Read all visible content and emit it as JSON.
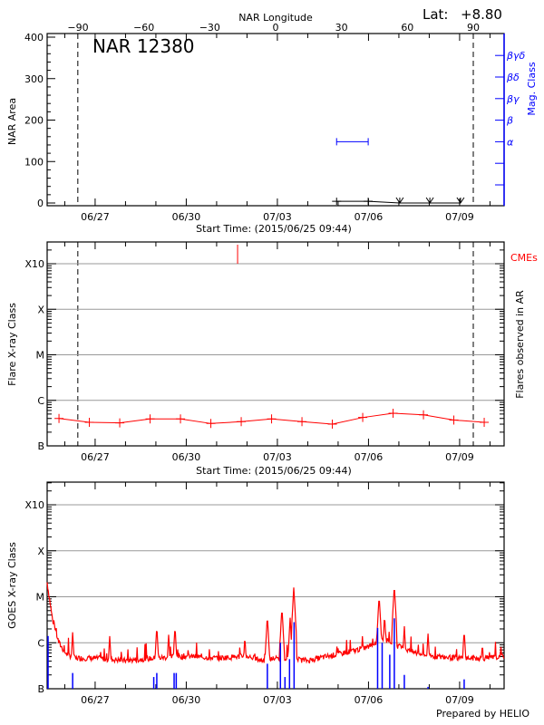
{
  "header": {
    "lat_label": "Lat:",
    "lat_value": "+8.80",
    "footer": "Prepared by HELIO"
  },
  "chart_data": [
    {
      "type": "line",
      "panel": "nar-area",
      "title": "NAR 12380",
      "xlabel": "Start Time: (2015/06/25 09:44)",
      "ylabel": "NAR Area",
      "y2label": "Mag. Class",
      "top_axis_label": "NAR Longitude",
      "top_ticks": [
        "-90",
        "-60",
        "-30",
        "0",
        "30",
        "60",
        "90"
      ],
      "x_ticks": [
        "06/27",
        "06/30",
        "07/03",
        "07/06",
        "07/09"
      ],
      "y_ticks": [
        "0",
        "100",
        "200",
        "300",
        "400"
      ],
      "ylim": [
        0,
        400
      ],
      "mag_class_ticks": [
        "",
        "",
        "α",
        "β",
        "βγ",
        "βδ",
        "βγδ"
      ],
      "limb_lines": [
        "06/26 10:19",
        "07/09 10:48"
      ],
      "area_series": [
        {
          "t": "07/04 22:48",
          "v": 4
        },
        {
          "t": "07/05 23:46",
          "v": 4
        },
        {
          "t": "07/07 00:43",
          "v": 0
        },
        {
          "t": "07/08 00:29",
          "v": 0
        },
        {
          "t": "07/09 00:43",
          "v": 0
        }
      ],
      "mag_class_series": [
        {
          "t_start": "07/04 22:48",
          "t_end": "07/05 23:46",
          "class": "α"
        }
      ],
      "colors": {
        "area": "#000000",
        "mag_class": "#0000ff"
      }
    },
    {
      "type": "line",
      "panel": "flares",
      "xlabel": "Start Time: (2015/06/25 09:44)",
      "ylabel": "Flare X-ray Class",
      "y2label": "Flares observed in AR",
      "cme_label": "CMEs",
      "x_ticks": [
        "06/27",
        "06/30",
        "07/03",
        "07/06",
        "07/09"
      ],
      "y_ticks": [
        "B",
        "C",
        "M",
        "X",
        "X10"
      ],
      "y_scale": "log",
      "grid": true,
      "limb_lines": [
        "06/26 10:19",
        "07/09 10:48"
      ],
      "cmes": [
        "07/01 16:34"
      ],
      "flare_series": [
        {
          "t": "06/25 19:26",
          "v": 4e-07
        },
        {
          "t": "06/26 19:26",
          "v": 3.3e-07
        },
        {
          "t": "06/27 19:26",
          "v": 3.2e-07
        },
        {
          "t": "06/28 19:26",
          "v": 3.9e-07
        },
        {
          "t": "06/29 19:26",
          "v": 3.9e-07
        },
        {
          "t": "06/30 19:26",
          "v": 3.1e-07
        },
        {
          "t": "07/01 19:26",
          "v": 3.4e-07
        },
        {
          "t": "07/02 19:26",
          "v": 3.9e-07
        },
        {
          "t": "07/03 19:26",
          "v": 3.4e-07
        },
        {
          "t": "07/04 19:26",
          "v": 3e-07
        },
        {
          "t": "07/05 19:26",
          "v": 4.2e-07
        },
        {
          "t": "07/06 19:26",
          "v": 5.2e-07
        },
        {
          "t": "07/07 19:26",
          "v": 4.8e-07
        },
        {
          "t": "07/08 19:26",
          "v": 3.7e-07
        },
        {
          "t": "07/09 19:26",
          "v": 3.3e-07
        }
      ],
      "colors": {
        "flares": "#ff0000",
        "cme": "#ff0000"
      }
    },
    {
      "type": "line",
      "panel": "goes",
      "ylabel": "GOES X-ray Class",
      "x_ticks": [
        "06/27",
        "06/30",
        "07/03",
        "07/06",
        "07/09"
      ],
      "y_ticks": [
        "B",
        "C",
        "M",
        "X",
        "X10"
      ],
      "y_scale": "log",
      "grid": true,
      "goes_baseline": [
        {
          "t": "06/25 10:05",
          "v": 2e-05
        },
        {
          "t": "06/25 14:24",
          "v": 3e-06
        },
        {
          "t": "06/25 19:12",
          "v": 1e-06
        },
        {
          "t": "06/26 00:00",
          "v": 6e-07
        },
        {
          "t": "06/26 07:12",
          "v": 4.5e-07
        },
        {
          "t": "06/27 00:00",
          "v": 4.5e-07
        },
        {
          "t": "06/28 00:00",
          "v": 4e-07
        },
        {
          "t": "06/29 00:00",
          "v": 4.5e-07
        },
        {
          "t": "06/30 00:00",
          "v": 5e-07
        },
        {
          "t": "07/01 00:00",
          "v": 4.5e-07
        },
        {
          "t": "07/02 00:00",
          "v": 5e-07
        },
        {
          "t": "07/02 12:00",
          "v": 4e-07
        },
        {
          "t": "07/03 00:00",
          "v": 4.5e-07
        },
        {
          "t": "07/04 00:00",
          "v": 4e-07
        },
        {
          "t": "07/05 00:00",
          "v": 5.5e-07
        },
        {
          "t": "07/05 12:00",
          "v": 6.5e-07
        },
        {
          "t": "07/06 00:00",
          "v": 8e-07
        },
        {
          "t": "07/06 12:00",
          "v": 1.2e-06
        },
        {
          "t": "07/07 00:00",
          "v": 8e-07
        },
        {
          "t": "07/07 12:00",
          "v": 6e-07
        },
        {
          "t": "07/08 00:00",
          "v": 5e-07
        },
        {
          "t": "07/09 00:00",
          "v": 4.5e-07
        },
        {
          "t": "07/10 00:00",
          "v": 4.5e-07
        },
        {
          "t": "07/10 11:02",
          "v": 5e-07
        }
      ],
      "goes_peaks": [
        {
          "t": "06/26 06:14",
          "v": 1.7e-06
        },
        {
          "t": "06/27 11:31",
          "v": 1.4e-06
        },
        {
          "t": "06/29 00:43",
          "v": 2.3e-06
        },
        {
          "t": "06/29 10:05",
          "v": 1.5e-06
        },
        {
          "t": "06/29 15:07",
          "v": 2.3e-06
        },
        {
          "t": "07/01 22:19",
          "v": 1.4e-06
        },
        {
          "t": "07/02 16:05",
          "v": 3.9e-06
        },
        {
          "t": "07/03 03:36",
          "v": 5.8e-06
        },
        {
          "t": "07/03 10:05",
          "v": 3.5e-06
        },
        {
          "t": "07/03 12:58",
          "v": 1.6e-05
        },
        {
          "t": "07/06 08:24",
          "v": 1.05e-05
        },
        {
          "t": "07/06 12:43",
          "v": 4e-06
        },
        {
          "t": "07/06 20:24",
          "v": 1.8e-05
        },
        {
          "t": "07/07 04:19",
          "v": 2.3e-06
        },
        {
          "t": "07/07 23:02",
          "v": 1.6e-06
        },
        {
          "t": "07/09 03:36",
          "v": 1.9e-06
        },
        {
          "t": "07/09 18:00",
          "v": 1e-06
        }
      ],
      "flare_events": [
        {
          "t": "06/25 10:48",
          "v": 1.4e-06
        },
        {
          "t": "06/26 06:14",
          "v": 2.2e-07
        },
        {
          "t": "06/28 22:19",
          "v": 1.8e-07
        },
        {
          "t": "06/29 00:43",
          "v": 2.2e-07
        },
        {
          "t": "06/29 14:24",
          "v": 2.2e-07
        },
        {
          "t": "06/29 16:05",
          "v": 2.2e-07
        },
        {
          "t": "07/02 16:05",
          "v": 3.5e-07
        },
        {
          "t": "07/03 02:24",
          "v": 1e-06
        },
        {
          "t": "07/03 06:00",
          "v": 1.8e-07
        },
        {
          "t": "07/03 09:36",
          "v": 4.4e-07
        },
        {
          "t": "07/03 13:12",
          "v": 2.8e-06
        },
        {
          "t": "07/06 07:12",
          "v": 2.1e-06
        },
        {
          "t": "07/06 10:48",
          "v": 1e-06
        },
        {
          "t": "07/06 16:48",
          "v": 5.5e-07
        },
        {
          "t": "07/06 20:24",
          "v": 3.4e-06
        },
        {
          "t": "07/07 04:19",
          "v": 2e-07
        },
        {
          "t": "07/07 23:02",
          "v": 1.1e-07
        },
        {
          "t": "07/09 03:36",
          "v": 1.6e-07
        }
      ],
      "colors": {
        "goes": "#ff0000",
        "events": "#0000ff"
      }
    }
  ]
}
